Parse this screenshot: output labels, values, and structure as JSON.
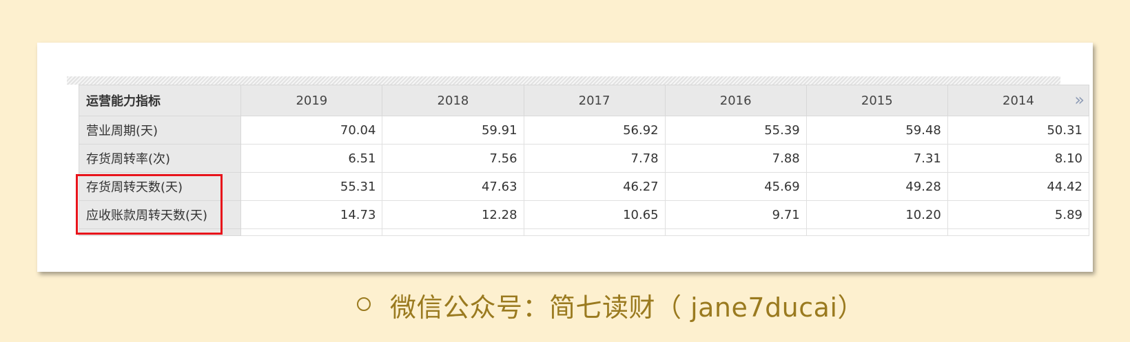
{
  "table": {
    "header_label": "运营能力指标",
    "years": [
      "2019",
      "2018",
      "2017",
      "2016",
      "2015",
      "2014"
    ],
    "rows": [
      {
        "label": "营业周期(天)",
        "values": [
          "70.04",
          "59.91",
          "56.92",
          "55.39",
          "59.48",
          "50.31"
        ]
      },
      {
        "label": "存货周转率(次)",
        "values": [
          "6.51",
          "7.56",
          "7.78",
          "7.88",
          "7.31",
          "8.10"
        ]
      },
      {
        "label": "存货周转天数(天)",
        "values": [
          "55.31",
          "47.63",
          "46.27",
          "45.69",
          "49.28",
          "44.42"
        ]
      },
      {
        "label": "应收账款周转天数(天)",
        "values": [
          "14.73",
          "12.28",
          "10.65",
          "9.71",
          "10.20",
          "5.89"
        ]
      }
    ],
    "more_icon": "»",
    "highlighted_rows": [
      "存货周转天数(天)",
      "应收账款周转天数(天)"
    ],
    "highlight_color": "#e8141b"
  },
  "caption": {
    "text": "微信公众号：简七读财（ jane7ducai）",
    "color": "#9a7a1f"
  },
  "colors": {
    "background": "#fdf0cf",
    "header_bg": "#e9e9e9"
  }
}
